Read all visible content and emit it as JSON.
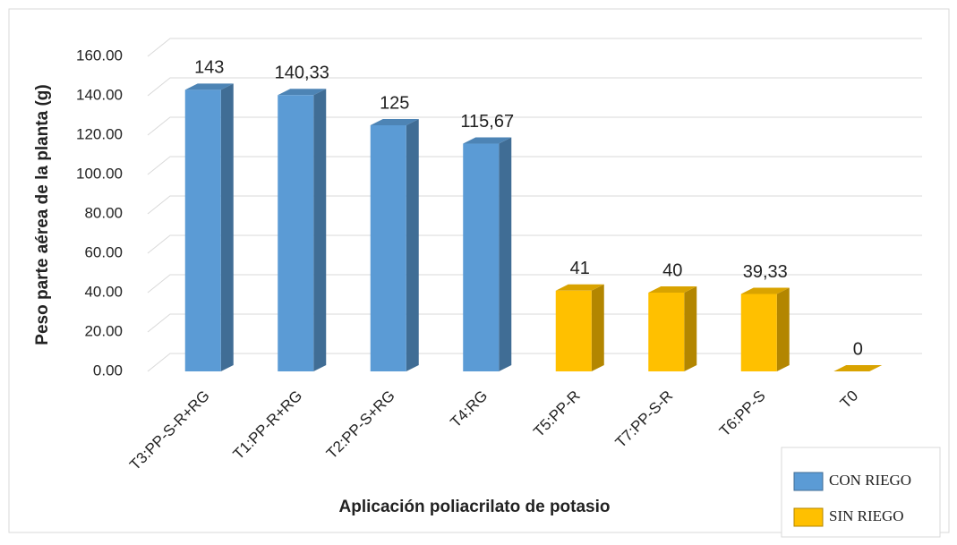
{
  "chart_data": {
    "type": "bar3d",
    "y_label": "Peso parte aérea de la planta (g)",
    "x_label": "Aplicación poliacrilato de potasio",
    "categories": [
      "T3:PP-S-R+RG",
      "T1:PP-R+RG",
      "T2:PP-S+RG",
      "T4:RG",
      "T5:PP-R",
      "T7:PP-S-R",
      "T6:PP-S",
      "T0"
    ],
    "series": [
      {
        "name": "CON RIEGO",
        "color": "#5b9bd5",
        "values": [
          143,
          140.33,
          125,
          115.67,
          null,
          null,
          null,
          null
        ],
        "value_labels": [
          "143",
          "140,33",
          "125",
          "115,67",
          null,
          null,
          null,
          null
        ]
      },
      {
        "name": "SIN RIEGO",
        "color": "#ffc000",
        "values": [
          null,
          null,
          null,
          null,
          41,
          40,
          39.33,
          0
        ],
        "value_labels": [
          null,
          null,
          null,
          null,
          "41",
          "40",
          "39,33",
          "0"
        ]
      }
    ],
    "ylim": [
      0,
      160
    ],
    "yticks": [
      {
        "value": 0,
        "label": "0.00"
      },
      {
        "value": 20,
        "label": "20.00"
      },
      {
        "value": 40,
        "label": "40.00"
      },
      {
        "value": 60,
        "label": "60.00"
      },
      {
        "value": 80,
        "label": "80.00"
      },
      {
        "value": 100,
        "label": "100.00"
      },
      {
        "value": 120,
        "label": "120.00"
      },
      {
        "value": 140,
        "label": "140.00"
      },
      {
        "value": 160,
        "label": "160.00"
      }
    ],
    "grid": true,
    "legend": "lower right"
  }
}
